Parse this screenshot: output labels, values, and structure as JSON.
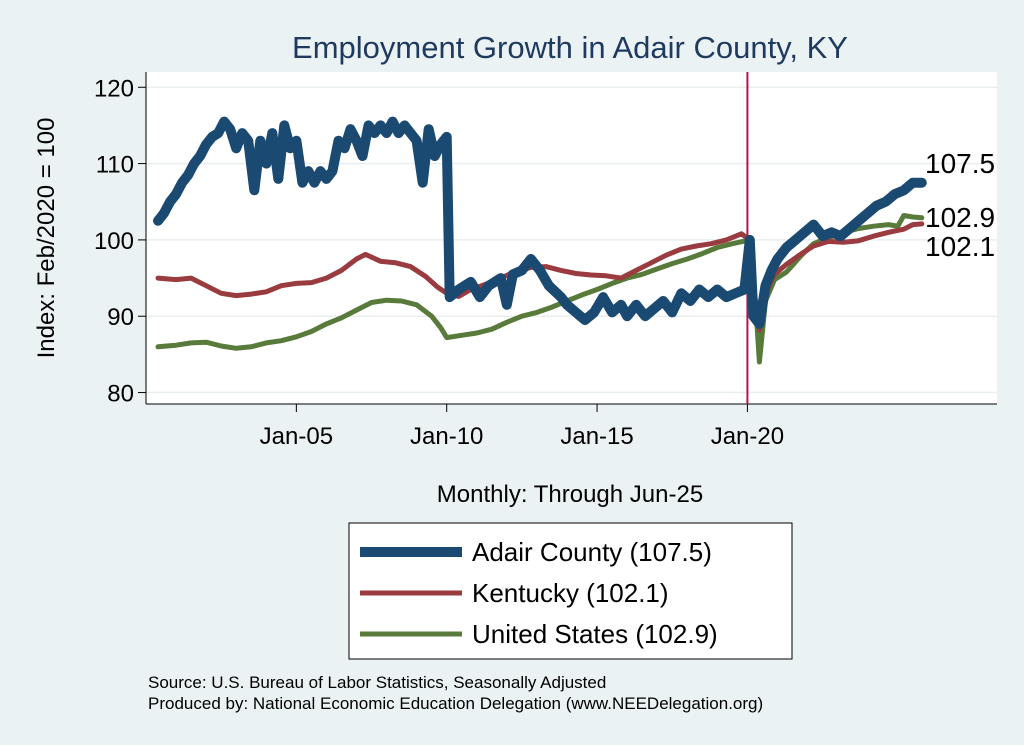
{
  "chart_data": {
    "type": "line",
    "title": "Employment Growth in Adair  County, KY",
    "ylabel": "Index: Feb/2020 = 100",
    "xlabel": "Monthly: Through Jun-25",
    "ylim": [
      78.5,
      122
    ],
    "yticks": [
      80,
      90,
      100,
      110,
      120
    ],
    "xlim": [
      2000.0,
      2028.3
    ],
    "xticks": [
      {
        "value": 2005.0,
        "label": "Jan-05"
      },
      {
        "value": 2010.0,
        "label": "Jan-10"
      },
      {
        "value": 2015.0,
        "label": "Jan-15"
      },
      {
        "value": 2020.0,
        "label": "Jan-20"
      }
    ],
    "reference_line": {
      "x": 2020.0,
      "color": "#b0174a"
    },
    "series": [
      {
        "name": "Adair  County",
        "legend_label": "Adair  County (107.5)",
        "end_value_label": "107.5",
        "color": "#1a4a72",
        "width": 10,
        "points": [
          [
            2000.4,
            102.5
          ],
          [
            2000.6,
            103.5
          ],
          [
            2000.8,
            105
          ],
          [
            2001.0,
            106
          ],
          [
            2001.2,
            107.5
          ],
          [
            2001.4,
            108.5
          ],
          [
            2001.6,
            110
          ],
          [
            2001.8,
            111
          ],
          [
            2002.0,
            112.5
          ],
          [
            2002.2,
            113.5
          ],
          [
            2002.4,
            114
          ],
          [
            2002.6,
            115.5
          ],
          [
            2002.8,
            114.5
          ],
          [
            2003.0,
            112
          ],
          [
            2003.2,
            114
          ],
          [
            2003.4,
            113
          ],
          [
            2003.6,
            106.5
          ],
          [
            2003.8,
            113
          ],
          [
            2004.0,
            110
          ],
          [
            2004.2,
            114
          ],
          [
            2004.4,
            108
          ],
          [
            2004.6,
            115
          ],
          [
            2004.8,
            112
          ],
          [
            2005.0,
            113
          ],
          [
            2005.2,
            107.5
          ],
          [
            2005.4,
            109
          ],
          [
            2005.6,
            107.5
          ],
          [
            2005.8,
            109
          ],
          [
            2006.0,
            108
          ],
          [
            2006.2,
            109
          ],
          [
            2006.4,
            113
          ],
          [
            2006.6,
            112
          ],
          [
            2006.8,
            114.5
          ],
          [
            2007.0,
            113
          ],
          [
            2007.2,
            111
          ],
          [
            2007.4,
            115
          ],
          [
            2007.6,
            114
          ],
          [
            2007.8,
            115
          ],
          [
            2008.0,
            114
          ],
          [
            2008.2,
            115.5
          ],
          [
            2008.4,
            114
          ],
          [
            2008.6,
            115
          ],
          [
            2008.8,
            114
          ],
          [
            2009.0,
            113
          ],
          [
            2009.2,
            107.5
          ],
          [
            2009.4,
            114.5
          ],
          [
            2009.6,
            111
          ],
          [
            2009.8,
            112.5
          ],
          [
            2010.0,
            113.5
          ],
          [
            2010.1,
            92.5
          ],
          [
            2010.4,
            93.5
          ],
          [
            2010.8,
            94.5
          ],
          [
            2011.1,
            92.5
          ],
          [
            2011.4,
            94
          ],
          [
            2011.8,
            95
          ],
          [
            2012.0,
            91.5
          ],
          [
            2012.2,
            95.5
          ],
          [
            2012.5,
            96
          ],
          [
            2012.8,
            97.5
          ],
          [
            2013.1,
            96
          ],
          [
            2013.4,
            94
          ],
          [
            2013.8,
            92.5
          ],
          [
            2014.0,
            91.5
          ],
          [
            2014.3,
            90.5
          ],
          [
            2014.6,
            89.5
          ],
          [
            2014.9,
            90.5
          ],
          [
            2015.2,
            92.5
          ],
          [
            2015.5,
            90.5
          ],
          [
            2015.8,
            91.5
          ],
          [
            2016.0,
            90
          ],
          [
            2016.3,
            91.5
          ],
          [
            2016.6,
            90
          ],
          [
            2016.9,
            91
          ],
          [
            2017.2,
            92
          ],
          [
            2017.5,
            90.5
          ],
          [
            2017.8,
            93
          ],
          [
            2018.1,
            92
          ],
          [
            2018.4,
            93.5
          ],
          [
            2018.7,
            92.5
          ],
          [
            2019.0,
            93.5
          ],
          [
            2019.3,
            92.5
          ],
          [
            2019.6,
            93
          ],
          [
            2019.9,
            93.5
          ],
          [
            2020.08,
            100
          ],
          [
            2020.2,
            90
          ],
          [
            2020.4,
            89
          ],
          [
            2020.6,
            94
          ],
          [
            2020.8,
            96
          ],
          [
            2021.0,
            97.5
          ],
          [
            2021.3,
            99
          ],
          [
            2021.6,
            100
          ],
          [
            2021.9,
            101
          ],
          [
            2022.2,
            102
          ],
          [
            2022.5,
            100.5
          ],
          [
            2022.8,
            101
          ],
          [
            2023.1,
            100.5
          ],
          [
            2023.4,
            101.5
          ],
          [
            2023.7,
            102.5
          ],
          [
            2024.0,
            103.5
          ],
          [
            2024.3,
            104.5
          ],
          [
            2024.6,
            105
          ],
          [
            2024.9,
            106
          ],
          [
            2025.2,
            106.5
          ],
          [
            2025.5,
            107.5
          ],
          [
            2025.8,
            107.5
          ]
        ]
      },
      {
        "name": "Kentucky",
        "legend_label": "Kentucky (102.1)",
        "end_value_label": "102.1",
        "color": "#9a3b3f",
        "width": 5,
        "points": [
          [
            2000.4,
            95
          ],
          [
            2001.0,
            94.8
          ],
          [
            2001.5,
            95
          ],
          [
            2002.0,
            94
          ],
          [
            2002.5,
            93
          ],
          [
            2003.0,
            92.7
          ],
          [
            2003.5,
            92.9
          ],
          [
            2004.0,
            93.2
          ],
          [
            2004.5,
            94
          ],
          [
            2005.0,
            94.3
          ],
          [
            2005.5,
            94.4
          ],
          [
            2006.0,
            95
          ],
          [
            2006.5,
            96
          ],
          [
            2007.0,
            97.5
          ],
          [
            2007.3,
            98.1
          ],
          [
            2007.8,
            97.2
          ],
          [
            2008.3,
            97
          ],
          [
            2008.8,
            96.5
          ],
          [
            2009.3,
            95.2
          ],
          [
            2009.7,
            93.8
          ],
          [
            2010.0,
            93
          ],
          [
            2010.4,
            92.6
          ],
          [
            2010.8,
            93.5
          ],
          [
            2011.3,
            94.2
          ],
          [
            2011.8,
            95
          ],
          [
            2012.3,
            95.9
          ],
          [
            2012.8,
            96.4
          ],
          [
            2013.3,
            96.5
          ],
          [
            2013.8,
            96
          ],
          [
            2014.3,
            95.6
          ],
          [
            2014.8,
            95.4
          ],
          [
            2015.3,
            95.3
          ],
          [
            2015.8,
            95
          ],
          [
            2016.3,
            96
          ],
          [
            2016.8,
            97
          ],
          [
            2017.3,
            98
          ],
          [
            2017.8,
            98.8
          ],
          [
            2018.3,
            99.2
          ],
          [
            2018.8,
            99.5
          ],
          [
            2019.3,
            100
          ],
          [
            2019.8,
            100.8
          ],
          [
            2020.08,
            100
          ],
          [
            2020.2,
            94
          ],
          [
            2020.4,
            88.2
          ],
          [
            2020.6,
            93
          ],
          [
            2020.9,
            95.5
          ],
          [
            2021.3,
            96.8
          ],
          [
            2021.8,
            98.2
          ],
          [
            2022.2,
            99.2
          ],
          [
            2022.7,
            99.8
          ],
          [
            2023.2,
            99.7
          ],
          [
            2023.7,
            99.9
          ],
          [
            2024.2,
            100.5
          ],
          [
            2024.7,
            101
          ],
          [
            2025.2,
            101.4
          ],
          [
            2025.5,
            102
          ],
          [
            2025.8,
            102.1
          ]
        ]
      },
      {
        "name": "United States",
        "legend_label": "United States (102.9)",
        "end_value_label": "102.9",
        "color": "#587a3a",
        "width": 5,
        "points": [
          [
            2000.4,
            86
          ],
          [
            2001.0,
            86.2
          ],
          [
            2001.5,
            86.5
          ],
          [
            2002.0,
            86.6
          ],
          [
            2002.5,
            86.1
          ],
          [
            2003.0,
            85.8
          ],
          [
            2003.5,
            86
          ],
          [
            2004.0,
            86.5
          ],
          [
            2004.5,
            86.8
          ],
          [
            2005.0,
            87.3
          ],
          [
            2005.5,
            88
          ],
          [
            2006.0,
            89
          ],
          [
            2006.5,
            89.8
          ],
          [
            2007.0,
            90.8
          ],
          [
            2007.5,
            91.8
          ],
          [
            2008.0,
            92.1
          ],
          [
            2008.5,
            92
          ],
          [
            2009.0,
            91.5
          ],
          [
            2009.5,
            90
          ],
          [
            2009.8,
            88.5
          ],
          [
            2010.0,
            87.2
          ],
          [
            2010.5,
            87.5
          ],
          [
            2011.0,
            87.8
          ],
          [
            2011.5,
            88.3
          ],
          [
            2012.0,
            89.2
          ],
          [
            2012.5,
            90
          ],
          [
            2013.0,
            90.5
          ],
          [
            2013.5,
            91.2
          ],
          [
            2014.0,
            92
          ],
          [
            2014.5,
            92.8
          ],
          [
            2015.0,
            93.5
          ],
          [
            2015.5,
            94.3
          ],
          [
            2016.0,
            95
          ],
          [
            2016.5,
            95.5
          ],
          [
            2017.0,
            96.2
          ],
          [
            2017.5,
            96.9
          ],
          [
            2018.0,
            97.5
          ],
          [
            2018.5,
            98.2
          ],
          [
            2019.0,
            99
          ],
          [
            2019.5,
            99.5
          ],
          [
            2020.08,
            100
          ],
          [
            2020.3,
            90
          ],
          [
            2020.4,
            84
          ],
          [
            2020.6,
            92
          ],
          [
            2020.9,
            94.8
          ],
          [
            2021.3,
            95.8
          ],
          [
            2021.8,
            98
          ],
          [
            2022.2,
            99.5
          ],
          [
            2022.7,
            100.3
          ],
          [
            2023.2,
            101
          ],
          [
            2023.7,
            101.5
          ],
          [
            2024.2,
            101.8
          ],
          [
            2024.7,
            102
          ],
          [
            2025.0,
            101.8
          ],
          [
            2025.2,
            103.2
          ],
          [
            2025.5,
            103
          ],
          [
            2025.8,
            102.9
          ]
        ]
      }
    ]
  },
  "notes": {
    "source": "Source: U.S. Bureau of Labor Statistics, Seasonally Adjusted",
    "produced_by": "Produced by: National Economic Education Delegation (www.NEEDelegation.org)"
  }
}
